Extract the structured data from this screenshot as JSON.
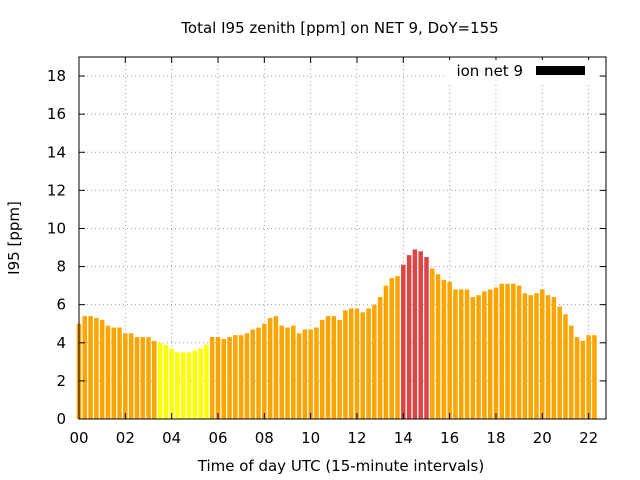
{
  "chart_data": {
    "type": "bar",
    "title": "Total I95 zenith [ppm] on NET 9, DoY=155",
    "xlabel": "Time of day UTC (15-minute intervals)",
    "ylabel": "I95 [ppm]",
    "xlim": [
      0,
      22.75
    ],
    "ylim": [
      0,
      19
    ],
    "x_ticks": [
      0,
      2,
      4,
      6,
      8,
      10,
      12,
      14,
      16,
      18,
      20,
      22
    ],
    "x_tick_labels": [
      "00",
      "02",
      "04",
      "06",
      "08",
      "10",
      "12",
      "14",
      "16",
      "18",
      "20",
      "22"
    ],
    "y_ticks": [
      0,
      2,
      4,
      6,
      8,
      10,
      12,
      14,
      16,
      18
    ],
    "y_tick_labels": [
      "0",
      "2",
      "4",
      "6",
      "8",
      "10",
      "12",
      "14",
      "16",
      "18"
    ],
    "interval_hours": 0.25,
    "grid": true,
    "legend": {
      "label": "ion net 9",
      "position": "top-right",
      "color": "#000000"
    },
    "colors": {
      "low": "#ffff00",
      "medium": "#ffa500",
      "high": "#dd4444"
    },
    "series": [
      {
        "values": [
          5.0,
          5.4,
          5.4,
          5.3,
          5.2,
          4.9,
          4.8,
          4.8,
          4.5,
          4.5,
          4.3,
          4.3,
          4.3,
          4.1,
          4.0,
          3.9,
          3.7,
          3.5,
          3.5,
          3.5,
          3.6,
          3.7,
          3.9,
          4.3,
          4.3,
          4.2,
          4.3,
          4.4,
          4.4,
          4.5,
          4.7,
          4.8,
          5.0,
          5.3,
          5.4,
          4.9,
          4.8,
          4.9,
          4.5,
          4.7,
          4.7,
          4.8,
          5.2,
          5.4,
          5.4,
          5.2,
          5.7,
          5.8,
          5.8,
          5.6,
          5.8,
          6.0,
          6.4,
          7.0,
          7.4,
          7.5,
          8.1,
          8.6,
          8.9,
          8.8,
          8.5,
          7.9,
          7.6,
          7.3,
          7.2,
          6.8,
          6.8,
          6.8,
          6.4,
          6.5,
          6.7,
          6.8,
          6.9,
          7.1,
          7.1,
          7.1,
          7.0,
          6.6,
          6.5,
          6.6,
          6.8,
          6.5,
          6.4,
          5.9,
          5.5,
          4.9,
          4.3,
          4.1,
          4.4,
          4.4
        ],
        "levels": [
          "medium",
          "medium",
          "medium",
          "medium",
          "medium",
          "medium",
          "medium",
          "medium",
          "medium",
          "medium",
          "medium",
          "medium",
          "medium",
          "medium",
          "low",
          "low",
          "low",
          "low",
          "low",
          "low",
          "low",
          "low",
          "low",
          "medium",
          "medium",
          "medium",
          "medium",
          "medium",
          "medium",
          "medium",
          "medium",
          "medium",
          "medium",
          "medium",
          "medium",
          "medium",
          "medium",
          "medium",
          "medium",
          "medium",
          "medium",
          "medium",
          "medium",
          "medium",
          "medium",
          "medium",
          "medium",
          "medium",
          "medium",
          "medium",
          "medium",
          "medium",
          "medium",
          "medium",
          "medium",
          "medium",
          "high",
          "high",
          "high",
          "high",
          "high",
          "medium",
          "medium",
          "medium",
          "medium",
          "medium",
          "medium",
          "medium",
          "medium",
          "medium",
          "medium",
          "medium",
          "medium",
          "medium",
          "medium",
          "medium",
          "medium",
          "medium",
          "medium",
          "medium",
          "medium",
          "medium",
          "medium",
          "medium",
          "medium",
          "medium",
          "medium",
          "medium",
          "medium",
          "medium"
        ]
      }
    ]
  }
}
